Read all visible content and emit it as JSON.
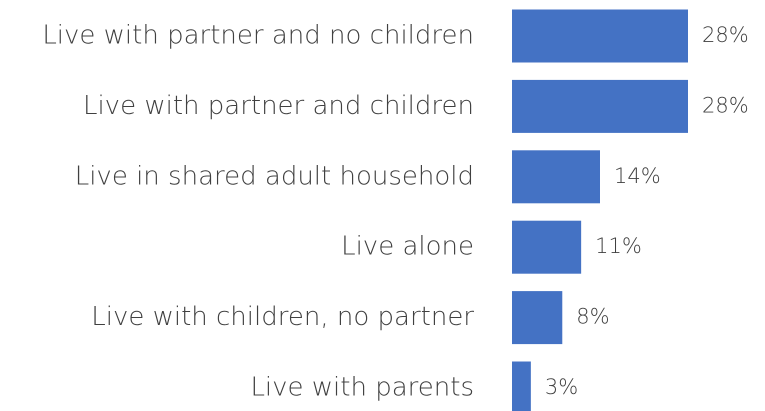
{
  "chart_data": {
    "type": "bar",
    "orientation": "horizontal",
    "categories": [
      "Live with partner and no children",
      "Live with partner and children",
      "Live in shared adult household",
      "Live alone",
      "Live with children, no partner",
      "Live with parents"
    ],
    "values": [
      28,
      28,
      14,
      11,
      8,
      3
    ],
    "value_labels": [
      "28%",
      "28%",
      "14%",
      "11%",
      "8%",
      "3%"
    ],
    "color": "#4472c4"
  }
}
